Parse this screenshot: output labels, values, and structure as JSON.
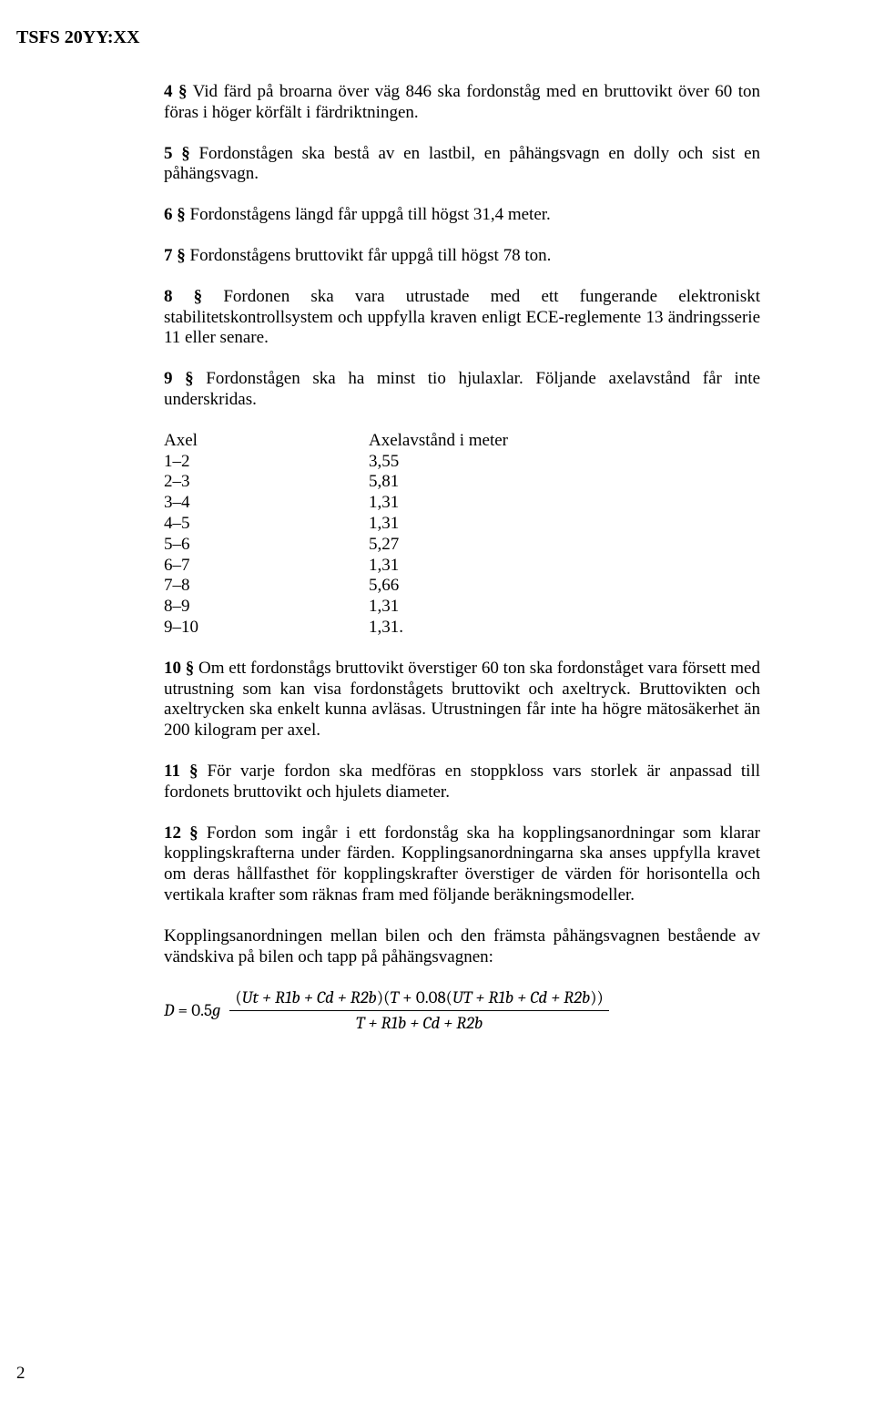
{
  "header": "TSFS 20YY:XX",
  "page_number": "2",
  "paragraphs": {
    "p4_lead": "4 §",
    "p4_rest": "   Vid färd på broarna över väg 846 ska fordonståg med en bruttovikt över 60 ton föras i höger körfält i färdriktningen.",
    "p5_lead": "5 §",
    "p5_rest": "   Fordonstågen ska bestå av en lastbil, en påhängsvagn en dolly och sist en påhängsvagn.",
    "p6_lead": "6 §",
    "p6_rest": "   Fordonstågens längd får uppgå till högst 31,4 meter.",
    "p7_lead": "7 §",
    "p7_rest": "   Fordonstågens bruttovikt får uppgå till högst 78 ton.",
    "p8_lead": "8 §",
    "p8_rest": "   Fordonen ska vara utrustade med ett fungerande elektroniskt stabilitetskontrollsystem och uppfylla kraven enligt ECE-reglemente 13 ändringsserie 11 eller senare.",
    "p9_lead": "9 §",
    "p9_rest": "   Fordonstågen ska ha minst tio hjulaxlar. Följande axelavstånd får inte underskridas.",
    "p10_lead": "10 §",
    "p10_rest": "   Om ett fordonstågs bruttovikt överstiger 60 ton ska fordonståget vara försett med utrustning som kan visa fordonstågets bruttovikt och axeltryck. Bruttovikten och axeltrycken ska enkelt kunna avläsas. Utrustningen får inte ha högre mätosäkerhet än 200 kilogram per axel.",
    "p11_lead": "11 §",
    "p11_rest": "   För varje fordon ska medföras en stoppkloss vars storlek är anpassad till fordonets bruttovikt och hjulets diameter.",
    "p12_lead": "12 §",
    "p12_rest": "   Fordon som ingår i ett fordonståg ska ha kopplingsanordningar som klarar kopplingskrafterna under färden. Kopplingsanordningarna ska anses uppfylla kravet om deras hållfasthet för kopplingskrafter överstiger de värden för horisontella och vertikala krafter som räknas fram med följande beräkningsmodeller.",
    "p_coupling": "Kopplingsanordningen mellan bilen och den främsta påhängsvagnen bestående av vändskiva på bilen och tapp på påhängsvagnen:"
  },
  "table": {
    "header_col1": "Axel",
    "header_col2": "Axelavstånd i meter",
    "rows": [
      {
        "c1": "1–2",
        "c2": "3,55"
      },
      {
        "c1": "2–3",
        "c2": "5,81"
      },
      {
        "c1": "3–4",
        "c2": "1,31"
      },
      {
        "c1": "4–5",
        "c2": "1,31"
      },
      {
        "c1": "5–6",
        "c2": "5,27"
      },
      {
        "c1": "6–7",
        "c2": "1,31"
      },
      {
        "c1": "7–8",
        "c2": "5,66"
      },
      {
        "c1": "8–9",
        "c2": "1,31"
      },
      {
        "c1": "9–10",
        "c2": "1,31."
      }
    ]
  },
  "formula": {
    "lhs_D": "D",
    "lhs_eq": " = 0.5",
    "lhs_g": "g",
    "num_open": "(",
    "num_p1": "Ut + R1b + Cd + R2b",
    "num_mid1": ")(",
    "num_T": "T",
    "num_plus008": " + 0.08(",
    "num_p2": "UT + R1b + Cd + R2b",
    "num_close": "))",
    "den": "T + R1b + Cd + R2b"
  }
}
